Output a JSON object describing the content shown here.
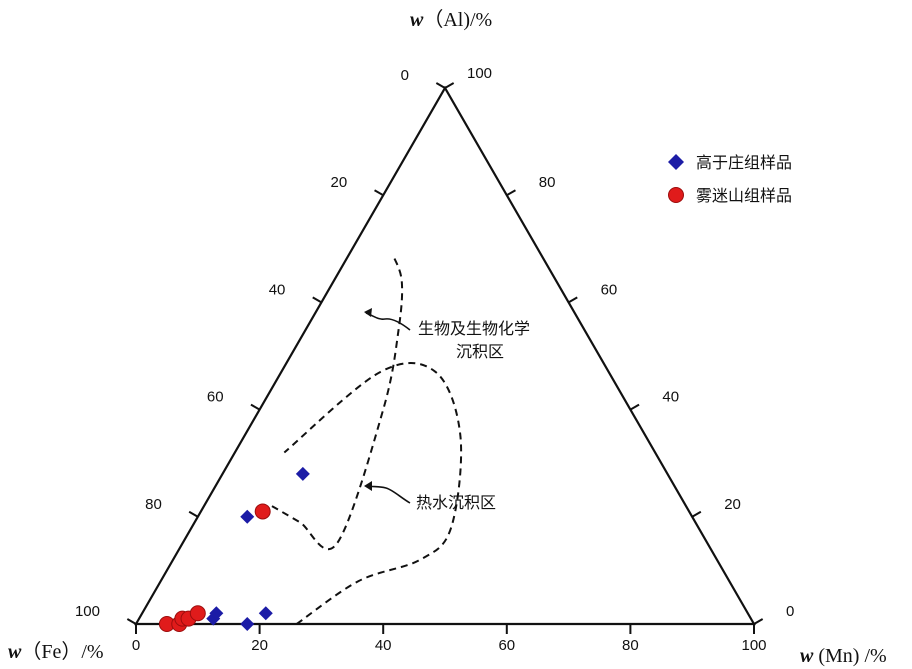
{
  "chart_data": {
    "type": "scatter",
    "subtype": "ternary",
    "axes": {
      "top": {
        "title_var": "w",
        "title_rest": "（Al)/%"
      },
      "left": {
        "title_var": "w",
        "title_rest": "（Fe）/%"
      },
      "right": {
        "title_var": "w",
        "title_rest": " (Mn) /%"
      }
    },
    "ticks": {
      "bottom": [
        "0",
        "20",
        "40",
        "60",
        "80",
        "100"
      ],
      "left": [
        "0",
        "20",
        "40",
        "60",
        "80",
        "100"
      ],
      "right": [
        "80",
        "60",
        "40",
        "20",
        "0"
      ],
      "apex": "100"
    },
    "legend": {
      "position": "top-right",
      "items": [
        {
          "label": "高于庄组样品",
          "marker": "diamond",
          "color": "#1c1ca6"
        },
        {
          "label": "雾迷山组样品",
          "marker": "circle",
          "color": "#e01b1b"
        }
      ]
    },
    "annotations": [
      {
        "lines": [
          "生物及生物化学",
          "沉积区"
        ]
      },
      {
        "lines": [
          "热水沉积区"
        ]
      }
    ],
    "series": [
      {
        "name": "高于庄组样品",
        "marker": "diamond",
        "color": "#1c1ca6",
        "points": [
          {
            "fe": 59,
            "mn": 13,
            "al": 28
          },
          {
            "fe": 72,
            "mn": 8,
            "al": 20
          },
          {
            "fe": 87,
            "mn": 12,
            "al": 1
          },
          {
            "fe": 86,
            "mn": 12,
            "al": 2
          },
          {
            "fe": 82,
            "mn": 18,
            "al": 0
          },
          {
            "fe": 78,
            "mn": 20,
            "al": 2
          }
        ]
      },
      {
        "name": "雾迷山组样品",
        "marker": "circle",
        "color": "#e01b1b",
        "points": [
          {
            "fe": 95,
            "mn": 5,
            "al": 0
          },
          {
            "fe": 93,
            "mn": 7,
            "al": 0
          },
          {
            "fe": 92,
            "mn": 7,
            "al": 1
          },
          {
            "fe": 91,
            "mn": 8,
            "al": 1
          },
          {
            "fe": 89,
            "mn": 9,
            "al": 2
          },
          {
            "fe": 69,
            "mn": 10,
            "al": 21
          }
        ]
      }
    ],
    "regions": [
      {
        "name": "生物及生物化学沉积区",
        "style": "dashed",
        "path": [
          {
            "fe": 67,
            "mn": 11,
            "al": 22
          },
          {
            "fe": 64,
            "mn": 17,
            "al": 19
          },
          {
            "fe": 60,
            "mn": 25,
            "al": 15
          },
          {
            "fe": 40,
            "mn": 20,
            "al": 40
          },
          {
            "fe": 30,
            "mn": 15,
            "al": 55
          },
          {
            "fe": 25,
            "mn": 11,
            "al": 64
          },
          {
            "fe": 24,
            "mn": 7,
            "al": 69
          }
        ]
      },
      {
        "name": "热水沉积区",
        "style": "dashed",
        "path": [
          {
            "fe": 74,
            "mn": 26,
            "al": 0
          },
          {
            "fe": 60,
            "mn": 32,
            "al": 8
          },
          {
            "fe": 48,
            "mn": 40,
            "al": 12
          },
          {
            "fe": 40,
            "mn": 42,
            "al": 18
          },
          {
            "fe": 30,
            "mn": 35,
            "al": 35
          },
          {
            "fe": 28,
            "mn": 25,
            "al": 47
          },
          {
            "fe": 37,
            "mn": 16,
            "al": 47
          },
          {
            "fe": 60,
            "mn": 8,
            "al": 32
          }
        ]
      }
    ]
  }
}
